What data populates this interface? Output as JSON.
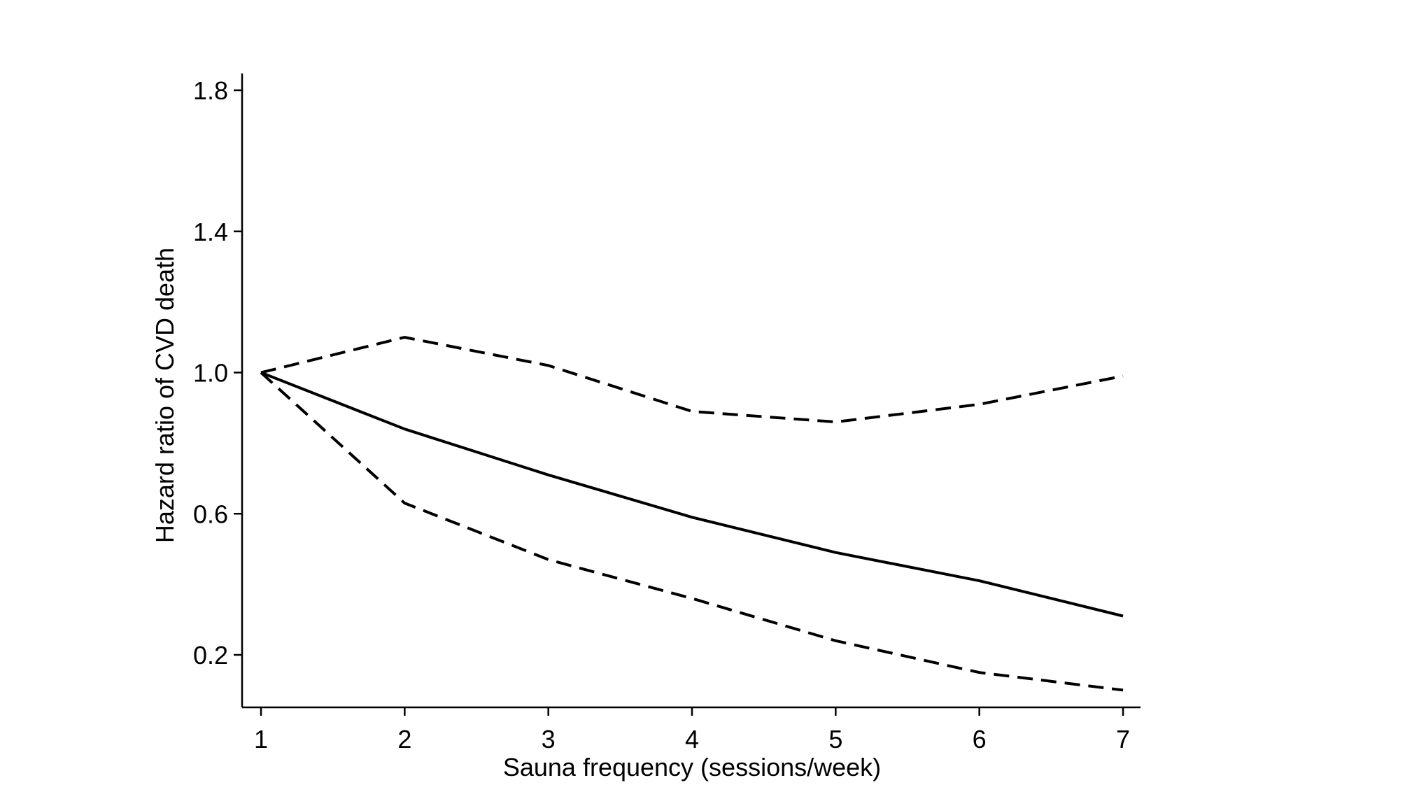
{
  "chart_data": {
    "type": "line",
    "title": "",
    "xlabel": "Sauna frequency (sessions/week)",
    "ylabel": "Hazard ratio of CVD death",
    "x": [
      1,
      2,
      3,
      4,
      5,
      6,
      7
    ],
    "xlim": [
      1,
      7
    ],
    "ylim": [
      0.05,
      1.85
    ],
    "xticks": [
      1,
      2,
      3,
      4,
      5,
      6,
      7
    ],
    "yticks": [
      0.2,
      0.6,
      1.0,
      1.4,
      1.8
    ],
    "ytick_labels": [
      "0.2",
      "0.6",
      "1.0",
      "1.4",
      "1.8"
    ],
    "grid": false,
    "legend": "none",
    "series": [
      {
        "values": [
          1.0,
          1.1,
          1.02,
          0.89,
          0.86,
          0.91,
          0.99
        ],
        "style": "dashed",
        "color": "#000000"
      },
      {
        "values": [
          1.0,
          0.84,
          0.71,
          0.59,
          0.49,
          0.41,
          0.31
        ],
        "style": "solid",
        "color": "#000000"
      },
      {
        "values": [
          1.0,
          0.63,
          0.47,
          0.36,
          0.24,
          0.15,
          0.1
        ],
        "style": "dashed",
        "color": "#000000"
      }
    ]
  }
}
